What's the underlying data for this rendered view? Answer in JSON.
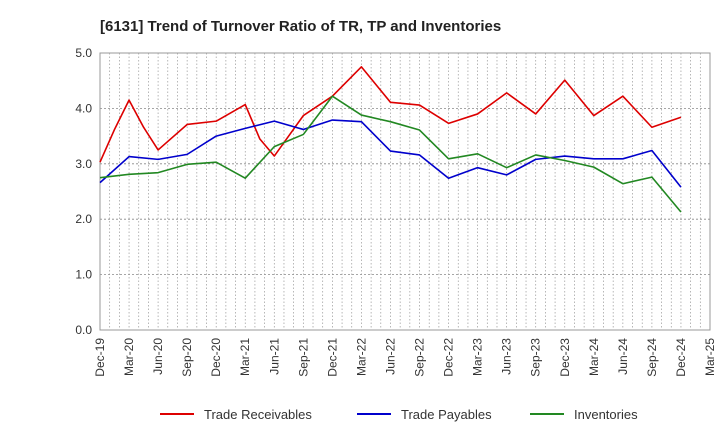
{
  "chart_data": {
    "type": "line",
    "title": "[6131]  Trend of Turnover Ratio of TR, TP and Inventories",
    "xlabel": "",
    "ylabel": "",
    "ylim": [
      0,
      5
    ],
    "yticks": [
      "0.0",
      "1.0",
      "2.0",
      "3.0",
      "4.0",
      "5.0"
    ],
    "x_tick_labels": [
      "Dec-19",
      "Mar-20",
      "Jun-20",
      "Sep-20",
      "Dec-20",
      "Mar-21",
      "Jun-21",
      "Sep-21",
      "Dec-21",
      "Mar-22",
      "Jun-22",
      "Sep-22",
      "Dec-22",
      "Mar-23",
      "Jun-23",
      "Sep-23",
      "Dec-23",
      "Mar-24",
      "Jun-24",
      "Sep-24",
      "Dec-24",
      "Mar-25"
    ],
    "grid": true,
    "legend_position": "bottom",
    "series": [
      {
        "name": "Trade Receivables",
        "color": "#dd0000",
        "values": [
          3.03,
          4.15,
          3.25,
          3.71,
          3.77,
          4.07,
          3.14,
          3.87,
          4.22,
          4.75,
          4.11,
          4.06,
          3.73,
          3.9,
          4.28,
          3.9,
          4.51,
          3.87,
          4.22,
          3.66,
          3.84
        ],
        "extra_points": [
          {
            "index": 0.5,
            "value": 3.62
          },
          {
            "index": 1.5,
            "value": 3.66
          },
          {
            "index": 5.5,
            "value": 3.45
          }
        ]
      },
      {
        "name": "Trade Payables",
        "color": "#0000cc",
        "values": [
          2.66,
          3.13,
          3.08,
          3.17,
          3.5,
          3.64,
          3.77,
          3.62,
          3.79,
          3.76,
          3.23,
          3.16,
          2.74,
          2.93,
          2.8,
          3.08,
          3.14,
          3.09,
          3.09,
          3.24,
          2.58
        ]
      },
      {
        "name": "Inventories",
        "color": "#228822",
        "values": [
          2.75,
          2.81,
          2.84,
          2.99,
          3.03,
          2.74,
          3.31,
          3.53,
          4.22,
          3.88,
          3.76,
          3.61,
          3.09,
          3.18,
          2.93,
          3.16,
          3.06,
          2.94,
          2.64,
          2.76,
          2.13
        ]
      }
    ]
  }
}
